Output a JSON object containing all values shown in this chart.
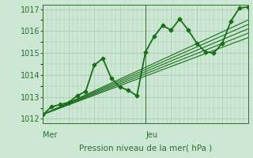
{
  "bg_color": "#cce8d4",
  "grid_color": "#a8c8b0",
  "line_color": "#1a6e1a",
  "axis_color": "#2d6e2d",
  "xlabel": "Pression niveau de la mer( hPa )",
  "xlim": [
    0,
    48
  ],
  "ylim": [
    1011.8,
    1017.2
  ],
  "yticks": [
    1012,
    1013,
    1014,
    1015,
    1016,
    1017
  ],
  "day_ticks": [
    [
      0,
      "Mer"
    ],
    [
      24,
      "Jeu"
    ]
  ],
  "series": [
    {
      "x": [
        0,
        2,
        4,
        6,
        8,
        10,
        12,
        14,
        16,
        18,
        20,
        22,
        24,
        26,
        28,
        30,
        32,
        34,
        36,
        38,
        40,
        42,
        44,
        46,
        48
      ],
      "y": [
        1012.2,
        1012.55,
        1012.65,
        1012.75,
        1013.05,
        1013.25,
        1014.45,
        1014.75,
        1013.85,
        1013.45,
        1013.3,
        1013.05,
        1015.05,
        1015.75,
        1016.25,
        1016.05,
        1016.55,
        1016.05,
        1015.45,
        1015.05,
        1015.0,
        1015.45,
        1016.45,
        1017.05,
        1017.1
      ],
      "lw": 1.3,
      "marker": "D",
      "ms": 2.5,
      "zorder": 5
    },
    {
      "x": [
        0,
        48
      ],
      "y": [
        1012.2,
        1016.5
      ],
      "lw": 0.8,
      "marker": null,
      "ms": 0,
      "zorder": 2
    },
    {
      "x": [
        0,
        48
      ],
      "y": [
        1012.2,
        1016.3
      ],
      "lw": 0.8,
      "marker": null,
      "ms": 0,
      "zorder": 2
    },
    {
      "x": [
        0,
        48
      ],
      "y": [
        1012.2,
        1016.1
      ],
      "lw": 0.8,
      "marker": null,
      "ms": 0,
      "zorder": 2
    },
    {
      "x": [
        0,
        48
      ],
      "y": [
        1012.2,
        1015.9
      ],
      "lw": 0.8,
      "marker": null,
      "ms": 0,
      "zorder": 2
    },
    {
      "x": [
        0,
        48
      ],
      "y": [
        1012.2,
        1015.7
      ],
      "lw": 0.8,
      "marker": null,
      "ms": 0,
      "zorder": 2
    }
  ]
}
